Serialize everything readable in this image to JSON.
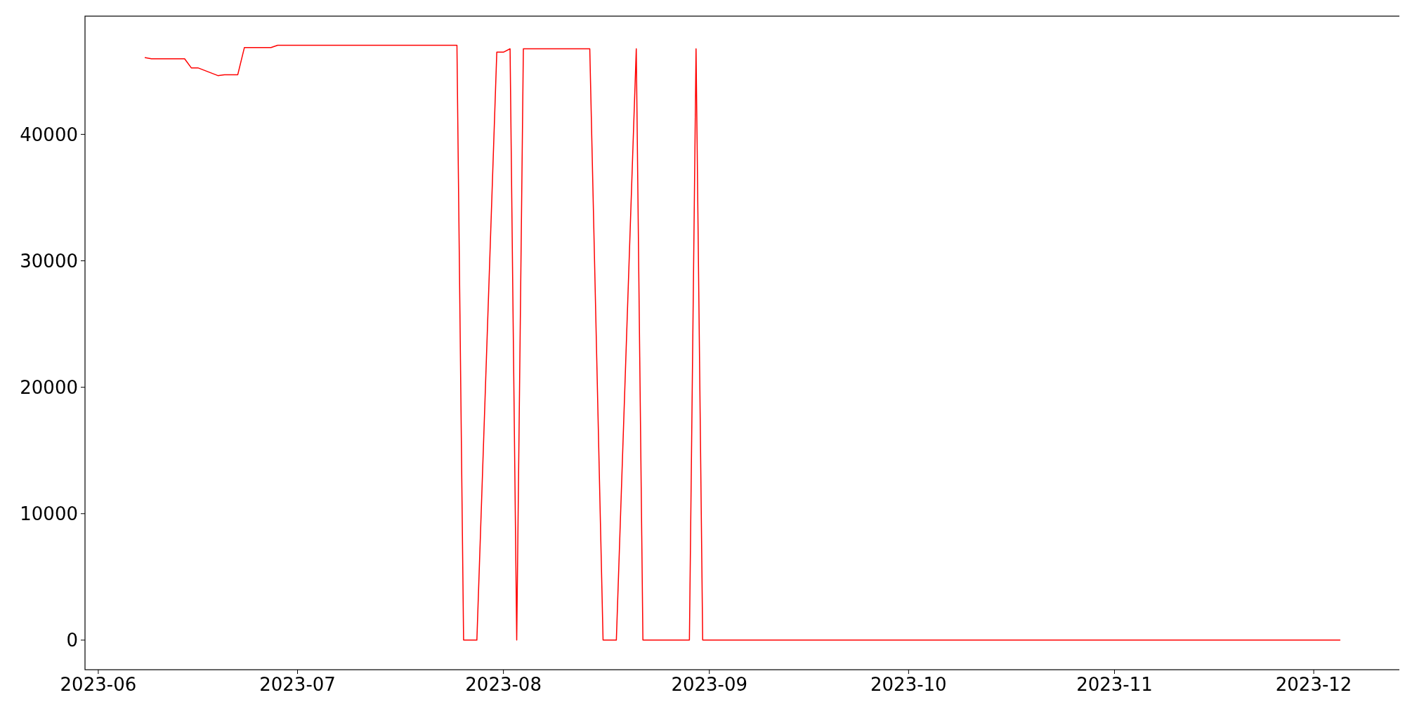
{
  "chart_data": {
    "type": "line",
    "x": [
      "2023-06-08",
      "2023-06-09",
      "2023-06-14",
      "2023-06-15",
      "2023-06-16",
      "2023-06-19",
      "2023-06-20",
      "2023-06-22",
      "2023-06-23",
      "2023-06-27",
      "2023-06-28",
      "2023-07-25",
      "2023-07-26",
      "2023-07-28",
      "2023-07-31",
      "2023-08-01",
      "2023-08-02",
      "2023-08-03",
      "2023-08-04",
      "2023-08-14",
      "2023-08-16",
      "2023-08-18",
      "2023-08-21",
      "2023-08-22",
      "2023-08-29",
      "2023-08-30",
      "2023-08-31",
      "2023-12-05"
    ],
    "series": [
      {
        "color": "#ff0000",
        "values": [
          46070,
          45980,
          45980,
          45260,
          45260,
          44650,
          44720,
          44720,
          46870,
          46870,
          47050,
          47050,
          0,
          0,
          46500,
          46500,
          46770,
          0,
          46770,
          46770,
          0,
          0,
          46770,
          0,
          0,
          46770,
          0,
          0
        ]
      }
    ],
    "xlim": [
      "2023-05-30",
      "2023-12-14"
    ],
    "ylim": [
      -2340,
      49350
    ],
    "xticks": [
      {
        "value": "2023-06-01",
        "label": "2023-06"
      },
      {
        "value": "2023-07-01",
        "label": "2023-07"
      },
      {
        "value": "2023-08-01",
        "label": "2023-08"
      },
      {
        "value": "2023-09-01",
        "label": "2023-09"
      },
      {
        "value": "2023-10-01",
        "label": "2023-10"
      },
      {
        "value": "2023-11-01",
        "label": "2023-11"
      },
      {
        "value": "2023-12-01",
        "label": "2023-12"
      }
    ],
    "yticks": [
      0,
      10000,
      20000,
      30000,
      40000
    ],
    "grid": false,
    "marker": "none",
    "line_style": "solid"
  }
}
